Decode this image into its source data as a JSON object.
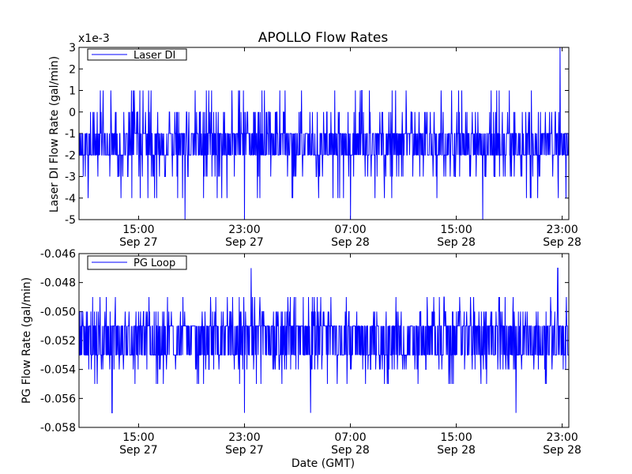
{
  "figure": {
    "title": "APOLLO Flow Rates",
    "xlabel": "Date (GMT)",
    "line_color": "#0000ff"
  },
  "chart_data": [
    {
      "type": "line",
      "title": "APOLLO Flow Rates",
      "ylabel": "Laser DI Flow Rate (gal/min)",
      "xlabel": "",
      "offset_label": "x1e-3",
      "ylim": [
        -5,
        3
      ],
      "yticks": [
        -5,
        -4,
        -3,
        -2,
        -1,
        0,
        1,
        2,
        3
      ],
      "ytick_labels": [
        "-5",
        "-4",
        "-3",
        "-2",
        "-1",
        "0",
        "1",
        "2",
        "3"
      ],
      "xlim": [
        "2012-09-27T10:30",
        "2012-09-28T23:30"
      ],
      "xticks": [
        "2012-09-27T15:00",
        "2012-09-27T23:00",
        "2012-09-28T07:00",
        "2012-09-28T15:00",
        "2012-09-28T23:00"
      ],
      "xtick_labels": [
        [
          "15:00",
          "Sep 27"
        ],
        [
          "23:00",
          "Sep 27"
        ],
        [
          "07:00",
          "Sep 28"
        ],
        [
          "15:00",
          "Sep 28"
        ],
        [
          "23:00",
          "Sep 28"
        ]
      ],
      "legend": {
        "label": "Laser DI",
        "position": "top-left"
      },
      "grid": false,
      "series": [
        {
          "name": "Laser DI",
          "color": "#0000ff",
          "baseline": [
            -1,
            -2
          ],
          "range": [
            -5,
            3
          ],
          "notable_points": [
            {
              "x": "2012-09-27T18:30",
              "y": -5
            },
            {
              "x": "2012-09-27T23:00",
              "y": -5
            },
            {
              "x": "2012-09-28T07:00",
              "y": -5
            },
            {
              "x": "2012-09-28T17:00",
              "y": -5
            },
            {
              "x": "2012-09-28T22:50",
              "y": 3
            }
          ]
        }
      ]
    },
    {
      "type": "line",
      "title": "",
      "ylabel": "PG Flow Rate (gal/min)",
      "xlabel": "Date (GMT)",
      "ylim": [
        -0.058,
        -0.046
      ],
      "yticks": [
        -0.058,
        -0.056,
        -0.054,
        -0.052,
        -0.05,
        -0.048,
        -0.046
      ],
      "ytick_labels": [
        "-0.058",
        "-0.056",
        "-0.054",
        "-0.052",
        "-0.050",
        "-0.048",
        "-0.046"
      ],
      "xlim": [
        "2012-09-27T10:30",
        "2012-09-28T23:30"
      ],
      "xticks": [
        "2012-09-27T15:00",
        "2012-09-27T23:00",
        "2012-09-28T07:00",
        "2012-09-28T15:00",
        "2012-09-28T23:00"
      ],
      "xtick_labels": [
        [
          "15:00",
          "Sep 27"
        ],
        [
          "23:00",
          "Sep 27"
        ],
        [
          "07:00",
          "Sep 28"
        ],
        [
          "15:00",
          "Sep 28"
        ],
        [
          "23:00",
          "Sep 28"
        ]
      ],
      "legend": {
        "label": "PG Loop",
        "position": "top-left"
      },
      "grid": false,
      "series": [
        {
          "name": "PG Loop",
          "color": "#0000ff",
          "baseline": [
            -0.051,
            -0.053
          ],
          "range": [
            -0.057,
            -0.047
          ],
          "notable_points": [
            {
              "x": "2012-09-27T13:00",
              "y": -0.057
            },
            {
              "x": "2012-09-27T23:00",
              "y": -0.057
            },
            {
              "x": "2012-09-27T23:30",
              "y": -0.047
            },
            {
              "x": "2012-09-28T04:00",
              "y": -0.057
            },
            {
              "x": "2012-09-28T19:30",
              "y": -0.057
            },
            {
              "x": "2012-09-28T22:40",
              "y": -0.047
            }
          ]
        }
      ]
    }
  ]
}
